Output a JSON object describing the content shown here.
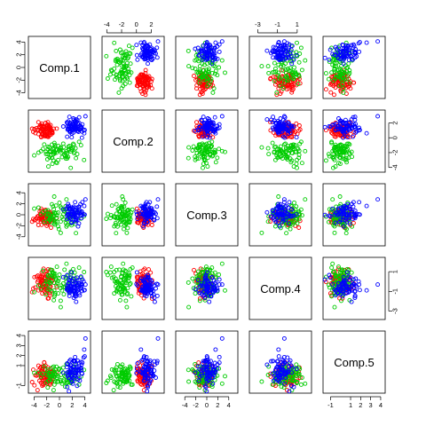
{
  "chart_data": {
    "type": "scatter",
    "kind": "scatterplot-matrix",
    "variables": [
      "Comp.1",
      "Comp.2",
      "Comp.3",
      "Comp.4",
      "Comp.5"
    ],
    "ranges": [
      [
        -4.5,
        4.5
      ],
      [
        -4.3,
        3.4
      ],
      [
        -5.2,
        5.2
      ],
      [
        -3.6,
        2.2
      ],
      [
        -1.5,
        4.2
      ]
    ],
    "ticks": [
      [
        -4,
        -2,
        0,
        2,
        4
      ],
      [
        -4,
        -2,
        0,
        2
      ],
      [
        -4,
        -2,
        0,
        2,
        4
      ],
      [
        -3,
        -1,
        1
      ],
      [
        -1,
        1,
        2,
        3,
        4
      ]
    ],
    "grid": false,
    "legend": "none",
    "groups": [
      {
        "color": "#ff0000",
        "mean": [
          -2.2,
          1.0,
          -0.4,
          -0.2,
          -0.2
        ],
        "sd": [
          0.9,
          0.6,
          0.8,
          0.7,
          0.6
        ],
        "points": [
          [
            -2.1,
            1.2,
            -0.3,
            -0.4,
            -0.1
          ],
          [
            -3.0,
            0.9,
            0.2,
            0.3,
            0.2
          ],
          [
            -1.6,
            1.5,
            -1.0,
            -0.8,
            -0.5
          ],
          [
            -2.7,
            0.4,
            -0.6,
            0.1,
            0.4
          ],
          [
            -1.9,
            1.8,
            0.5,
            -0.2,
            -0.8
          ],
          [
            -3.4,
            1.1,
            -1.2,
            0.6,
            0.1
          ],
          [
            -2.3,
            0.6,
            0.1,
            -1.1,
            0.6
          ],
          [
            -1.2,
            1.0,
            -0.8,
            0.4,
            -0.3
          ],
          [
            -2.6,
            1.6,
            -0.1,
            -0.6,
            0.9
          ],
          [
            -2.0,
            0.2,
            -1.4,
            0.0,
            -0.6
          ],
          [
            -3.1,
            1.4,
            0.6,
            -0.3,
            0.3
          ],
          [
            -1.5,
            0.7,
            -0.5,
            -1.4,
            -0.9
          ],
          [
            -2.8,
            1.9,
            -0.9,
            0.9,
            0.0
          ],
          [
            -2.2,
            0.9,
            0.9,
            -0.7,
            1.0
          ],
          [
            -1.8,
            1.3,
            -1.7,
            0.2,
            -0.4
          ],
          [
            -3.3,
            0.5,
            -0.2,
            -0.9,
            0.5
          ],
          [
            -2.5,
            1.1,
            -1.1,
            1.3,
            -0.2
          ],
          [
            -1.4,
            1.7,
            0.3,
            -0.5,
            0.7
          ],
          [
            -2.9,
            0.8,
            -0.7,
            -0.1,
            -0.7
          ],
          [
            -2.0,
            1.5,
            0.0,
            0.7,
            0.2
          ],
          [
            -2.4,
            0.3,
            -1.5,
            -0.6,
            1.3
          ],
          [
            -1.7,
            1.0,
            -0.4,
            -1.7,
            -0.1
          ],
          [
            -3.6,
            1.3,
            -0.6,
            0.5,
            0.0
          ],
          [
            -2.2,
            2.0,
            0.7,
            -0.2,
            -0.5
          ],
          [
            -1.1,
            0.6,
            -0.9,
            0.1,
            0.4
          ],
          [
            -2.7,
            1.2,
            0.4,
            -1.2,
            -1.0
          ],
          [
            -2.0,
            0.8,
            -2.0,
            0.8,
            0.3
          ],
          [
            -3.0,
            1.7,
            -0.3,
            -0.4,
            0.8
          ],
          [
            -1.6,
            0.4,
            0.2,
            -0.8,
            -0.3
          ],
          [
            -2.4,
            1.4,
            -1.3,
            0.3,
            0.1
          ]
        ]
      },
      {
        "color": "#00cc00",
        "mean": [
          0.0,
          -1.8,
          -0.2,
          0.0,
          -0.1
        ],
        "sd": [
          1.5,
          0.8,
          1.3,
          0.9,
          0.7
        ],
        "points": [
          [
            -0.5,
            -1.6,
            0.3,
            0.2,
            0.1
          ],
          [
            1.2,
            -2.1,
            -1.0,
            -0.5,
            -0.4
          ],
          [
            -1.8,
            -1.2,
            0.8,
            0.6,
            0.6
          ],
          [
            0.4,
            -2.6,
            -0.4,
            -0.9,
            -0.8
          ],
          [
            -1.0,
            -1.9,
            1.5,
            0.9,
            0.3
          ],
          [
            2.1,
            -1.4,
            -0.2,
            0.1,
            -0.2
          ],
          [
            -2.4,
            -0.9,
            -1.3,
            -0.3,
            0.9
          ],
          [
            0.8,
            -2.3,
            0.6,
            1.2,
            0.0
          ],
          [
            -0.2,
            -3.0,
            -2.1,
            -1.2,
            -0.6
          ],
          [
            1.6,
            -1.1,
            0.9,
            0.4,
            0.4
          ],
          [
            -1.4,
            -2.4,
            -0.6,
            -0.1,
            -0.3
          ],
          [
            0.0,
            -1.5,
            2.2,
            0.7,
            0.7
          ],
          [
            -2.9,
            -1.8,
            0.1,
            -0.7,
            -0.1
          ],
          [
            1.0,
            -2.8,
            -1.5,
            0.3,
            0.2
          ],
          [
            -0.8,
            -0.7,
            0.4,
            -1.5,
            -0.9
          ],
          [
            2.4,
            -1.9,
            0.2,
            0.9,
            1.1
          ],
          [
            -1.6,
            -1.3,
            -0.9,
            0.5,
            -0.5
          ],
          [
            0.3,
            -2.0,
            1.2,
            -0.4,
            0.5
          ],
          [
            -0.4,
            -3.4,
            -0.1,
            1.5,
            -0.2
          ],
          [
            1.9,
            -1.6,
            -1.9,
            -0.8,
            0.3
          ],
          [
            -2.1,
            -2.2,
            0.7,
            0.1,
            -0.7
          ],
          [
            0.6,
            -0.8,
            -0.8,
            -0.2,
            0.8
          ],
          [
            -1.2,
            -2.7,
            1.9,
            -1.0,
            0.0
          ],
          [
            1.4,
            -1.2,
            0.0,
            0.6,
            -0.4
          ],
          [
            -0.1,
            -1.7,
            -2.6,
            0.3,
            0.6
          ],
          [
            -2.6,
            -1.5,
            0.5,
            1.1,
            0.2
          ],
          [
            0.9,
            -2.5,
            1.0,
            -0.6,
            -1.1
          ],
          [
            -0.7,
            -1.0,
            -1.2,
            0.8,
            0.1
          ],
          [
            2.8,
            -2.2,
            0.6,
            -0.3,
            -0.3
          ],
          [
            -1.9,
            -2.9,
            -0.5,
            0.0,
            0.4
          ],
          [
            0.2,
            -1.3,
            -3.3,
            -2.6,
            -0.6
          ],
          [
            -3.3,
            -2.0,
            1.3,
            -0.4,
            0.3
          ],
          [
            1.1,
            -1.8,
            2.8,
            1.8,
            -0.8
          ],
          [
            -0.9,
            -2.2,
            -0.3,
            -1.9,
            0.9
          ],
          [
            3.4,
            -1.0,
            -0.7,
            0.4,
            -0.1
          ]
        ]
      },
      {
        "color": "#0000ff",
        "mean": [
          2.4,
          1.5,
          0.4,
          -0.6,
          0.4
        ],
        "sd": [
          0.8,
          0.6,
          1.0,
          0.6,
          0.9
        ],
        "points": [
          [
            2.3,
            1.6,
            0.2,
            -0.6,
            0.3
          ],
          [
            3.1,
            1.2,
            0.9,
            -0.2,
            -0.2
          ],
          [
            1.7,
            2.0,
            -0.5,
            -1.1,
            0.8
          ],
          [
            2.8,
            0.9,
            1.3,
            0.1,
            0.5
          ],
          [
            2.0,
            1.8,
            0.0,
            -0.8,
            -0.6
          ],
          [
            3.5,
            1.4,
            0.6,
            -0.4,
            1.1
          ],
          [
            2.5,
            2.3,
            -0.9,
            -1.3,
            0.0
          ],
          [
            1.5,
            1.1,
            1.6,
            -0.1,
            0.4
          ],
          [
            2.9,
            1.9,
            0.4,
            -0.9,
            -0.4
          ],
          [
            2.2,
            0.7,
            -0.3,
            0.3,
            1.5
          ],
          [
            3.3,
            1.6,
            1.9,
            -0.7,
            0.7
          ],
          [
            1.9,
            1.4,
            -1.3,
            -0.5,
            -0.1
          ],
          [
            2.6,
            2.1,
            0.8,
            -1.5,
            0.2
          ],
          [
            3.8,
            1.0,
            0.1,
            0.0,
            1.8
          ],
          [
            2.1,
            1.7,
            1.1,
            -0.3,
            -0.8
          ],
          [
            2.7,
            1.3,
            -0.6,
            -1.0,
            0.9
          ],
          [
            1.4,
            2.2,
            0.5,
            -0.2,
            0.1
          ],
          [
            3.0,
            0.8,
            1.4,
            -0.6,
            0.6
          ],
          [
            2.4,
            1.5,
            -0.1,
            -1.2,
            -0.3
          ],
          [
            3.6,
            1.8,
            2.3,
            0.2,
            1.3
          ],
          [
            2.0,
            1.2,
            0.7,
            -0.8,
            0.0
          ],
          [
            2.8,
            2.4,
            -1.0,
            -0.4,
            0.5
          ],
          [
            1.8,
            1.6,
            1.0,
            0.4,
            1.0
          ],
          [
            3.2,
            1.1,
            0.3,
            -1.4,
            -0.5
          ],
          [
            2.5,
            1.9,
            -0.4,
            -0.1,
            0.3
          ],
          [
            4.1,
            2.9,
            2.8,
            -0.3,
            3.7
          ],
          [
            3.9,
            0.6,
            1.6,
            -0.9,
            2.6
          ],
          [
            2.2,
            2.6,
            0.2,
            -0.7,
            -0.2
          ],
          [
            3.4,
            1.3,
            -0.2,
            0.5,
            0.8
          ],
          [
            1.6,
            0.9,
            1.2,
            -1.0,
            0.2
          ]
        ]
      }
    ]
  }
}
